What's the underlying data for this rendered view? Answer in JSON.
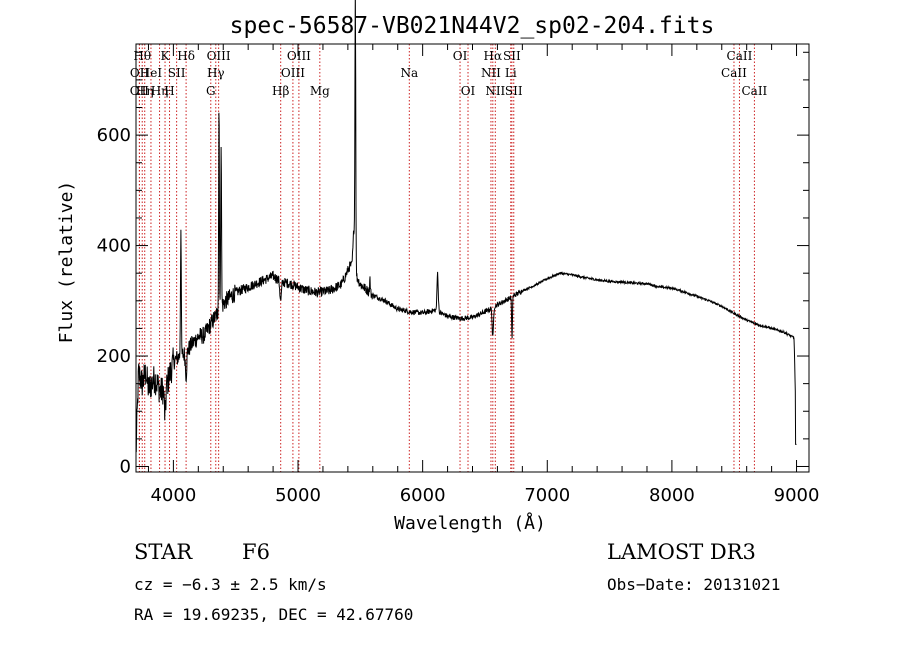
{
  "chart_data": {
    "type": "line",
    "title": "spec-56587-VB021N44V2_sp02-204.fits",
    "xlabel": "Wavelength (Å)",
    "ylabel": "Flux (relative)",
    "xlim": [
      3700,
      9100
    ],
    "ylim": [
      -10,
      765
    ],
    "xticks": [
      4000,
      5000,
      6000,
      7000,
      8000,
      9000
    ],
    "yticks": [
      0,
      200,
      400,
      600
    ],
    "grid": false,
    "colors": {
      "spectrum": "#000000",
      "line_markers": "#cc2222",
      "text": "#000000"
    },
    "series": [
      {
        "name": "flux",
        "anchors": [
          [
            3700,
            20
          ],
          [
            3720,
            170
          ],
          [
            3750,
            150
          ],
          [
            3780,
            170
          ],
          [
            3800,
            140
          ],
          [
            3850,
            160
          ],
          [
            3900,
            135
          ],
          [
            3950,
            150
          ],
          [
            4000,
            190
          ],
          [
            4050,
            200
          ],
          [
            4100,
            205
          ],
          [
            4150,
            222
          ],
          [
            4200,
            235
          ],
          [
            4250,
            238
          ],
          [
            4300,
            258
          ],
          [
            4360,
            280
          ],
          [
            4420,
            300
          ],
          [
            4500,
            315
          ],
          [
            4600,
            325
          ],
          [
            4700,
            335
          ],
          [
            4800,
            345
          ],
          [
            4860,
            335
          ],
          [
            4950,
            330
          ],
          [
            5050,
            320
          ],
          [
            5150,
            315
          ],
          [
            5250,
            318
          ],
          [
            5350,
            330
          ],
          [
            5420,
            365
          ],
          [
            5500,
            330
          ],
          [
            5600,
            310
          ],
          [
            5700,
            300
          ],
          [
            5800,
            285
          ],
          [
            5900,
            280
          ],
          [
            6000,
            278
          ],
          [
            6100,
            283
          ],
          [
            6200,
            272
          ],
          [
            6300,
            268
          ],
          [
            6400,
            270
          ],
          [
            6500,
            280
          ],
          [
            6600,
            293
          ],
          [
            6700,
            305
          ],
          [
            6800,
            318
          ],
          [
            6900,
            328
          ],
          [
            7000,
            340
          ],
          [
            7100,
            350
          ],
          [
            7200,
            347
          ],
          [
            7300,
            342
          ],
          [
            7400,
            338
          ],
          [
            7500,
            335
          ],
          [
            7600,
            334
          ],
          [
            7700,
            332
          ],
          [
            7800,
            331
          ],
          [
            7900,
            325
          ],
          [
            8000,
            323
          ],
          [
            8100,
            316
          ],
          [
            8200,
            308
          ],
          [
            8300,
            300
          ],
          [
            8400,
            290
          ],
          [
            8500,
            277
          ],
          [
            8600,
            265
          ],
          [
            8700,
            256
          ],
          [
            8800,
            250
          ],
          [
            8900,
            243
          ],
          [
            8980,
            233
          ],
          [
            9000,
            40
          ]
        ],
        "features": [
          {
            "center": 3933,
            "width": 6,
            "depth": -55
          },
          {
            "center": 4060,
            "width": 3,
            "depth": 240
          },
          {
            "center": 4102,
            "width": 5,
            "depth": -40
          },
          {
            "center": 4366,
            "width": 3,
            "depth": 380
          },
          {
            "center": 4383,
            "width": 3,
            "depth": 310
          },
          {
            "center": 4861,
            "width": 6,
            "depth": -35
          },
          {
            "center": 5460,
            "width": 3,
            "depth": 480
          },
          {
            "center": 5450,
            "width": 8,
            "depth": 80
          },
          {
            "center": 5577,
            "width": 3,
            "depth": 25
          },
          {
            "center": 6120,
            "width": 5,
            "depth": 70
          },
          {
            "center": 6563,
            "width": 5,
            "depth": -55
          },
          {
            "center": 6717,
            "width": 3,
            "depth": -80
          }
        ]
      }
    ],
    "spectral_lines": [
      {
        "wavelength": 3727,
        "label": "OII",
        "row": 2
      },
      {
        "wavelength": 3728,
        "label": "OII",
        "row": 1
      },
      {
        "wavelength": 3750,
        "label": "Hθ",
        "row": 0
      },
      {
        "wavelength": 3770,
        "label": "Hη",
        "row": 2
      },
      {
        "wavelength": 3820,
        "label": "HeI",
        "row": 1
      },
      {
        "wavelength": 3889,
        "label": "Hη",
        "row": 2
      },
      {
        "wavelength": 3933,
        "label": "K",
        "row": 0
      },
      {
        "wavelength": 3969,
        "label": "H",
        "row": 2
      },
      {
        "wavelength": 4026,
        "label": "SII",
        "row": 1
      },
      {
        "wavelength": 4102,
        "label": "Hδ",
        "row": 0
      },
      {
        "wavelength": 4300,
        "label": "G",
        "row": 2
      },
      {
        "wavelength": 4340,
        "label": "Hγ",
        "row": 1
      },
      {
        "wavelength": 4363,
        "label": "OIII",
        "row": 0
      },
      {
        "wavelength": 4861,
        "label": "Hβ",
        "row": 2
      },
      {
        "wavelength": 4959,
        "label": "OIII",
        "row": 1
      },
      {
        "wavelength": 5007,
        "label": "OIII",
        "row": 0
      },
      {
        "wavelength": 5175,
        "label": "Mg",
        "row": 2
      },
      {
        "wavelength": 5893,
        "label": "Na",
        "row": 1
      },
      {
        "wavelength": 6300,
        "label": "OI",
        "row": 0
      },
      {
        "wavelength": 6364,
        "label": "OI",
        "row": 2
      },
      {
        "wavelength": 6548,
        "label": "NII",
        "row": 1
      },
      {
        "wavelength": 6563,
        "label": "Hα",
        "row": 0
      },
      {
        "wavelength": 6583,
        "label": "NII",
        "row": 2
      },
      {
        "wavelength": 6707,
        "label": "Li",
        "row": 1
      },
      {
        "wavelength": 6716,
        "label": "SII",
        "row": 0
      },
      {
        "wavelength": 6731,
        "label": "SII",
        "row": 2
      },
      {
        "wavelength": 8498,
        "label": "CaII",
        "row": 1
      },
      {
        "wavelength": 8542,
        "label": "CaII",
        "row": 0
      },
      {
        "wavelength": 8662,
        "label": "CaII",
        "row": 2
      }
    ]
  },
  "info": {
    "object_class": "STAR",
    "subclass": "F6",
    "survey": "LAMOST DR3",
    "redshift": "cz = −6.3 ± 2.5 km/s",
    "obs_date": "Obs−Date: 20131021",
    "coords": "RA =  19.69235, DEC =  42.67760"
  }
}
